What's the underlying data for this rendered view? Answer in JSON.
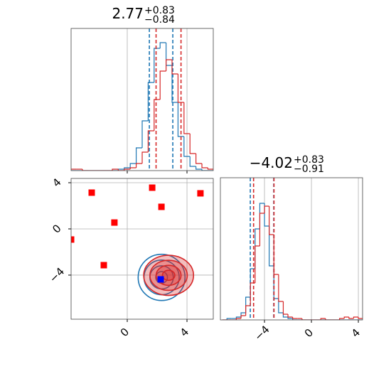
{
  "chart_data": [
    {
      "type": "histogram",
      "title": {
        "value": "2.77",
        "upper": "+0.83",
        "lower": "−0.84"
      },
      "bins": [
        -3.8,
        -3.4,
        -3.0,
        -2.6,
        -2.2,
        -1.8,
        -1.4,
        -1.0,
        -0.6,
        -0.2,
        0.2,
        0.6,
        1.0,
        1.4,
        1.8,
        2.2,
        2.6,
        3.0,
        3.4,
        3.8,
        4.2,
        4.6,
        5.0,
        5.4,
        5.8
      ],
      "series": [
        {
          "color": "#1f77b4",
          "values": [
            0,
            0,
            0,
            0,
            0,
            0,
            0,
            0,
            0.01,
            0.02,
            0.05,
            0.16,
            0.35,
            0.62,
            0.86,
            0.9,
            0.74,
            0.48,
            0.24,
            0.1,
            0.03,
            0.01,
            0,
            0
          ],
          "median": 2.3,
          "quantiles": [
            1.48,
            3.05
          ]
        },
        {
          "color": "#d62728",
          "values": [
            0.01,
            0.01,
            0,
            0,
            0,
            0,
            0,
            0.01,
            0,
            0.01,
            0.02,
            0.05,
            0.13,
            0.28,
            0.5,
            0.7,
            0.78,
            0.68,
            0.48,
            0.26,
            0.12,
            0.05,
            0.02,
            0.01
          ],
          "median": 2.77,
          "quantiles": [
            1.93,
            3.6
          ]
        }
      ],
      "xlim": [
        -3.76,
        5.76
      ],
      "xticks": [
        0,
        4
      ],
      "ylim": [
        0,
        1
      ],
      "grid": true
    },
    {
      "type": "scatter",
      "series": [
        {
          "color": "#ff0000",
          "x": [
            -2.38,
            1.67,
            2.29,
            4.9,
            -0.86,
            -3.76,
            -1.57
          ],
          "y": [
            3.14,
            3.57,
            1.91,
            3.08,
            0.55,
            -0.92,
            -3.14
          ]
        },
        {
          "color": "#0000ff",
          "x": [
            2.24
          ],
          "y": [
            -4.37
          ]
        }
      ],
      "xlim": [
        -3.76,
        5.76
      ],
      "xticks": [
        0,
        4
      ],
      "ylim": [
        -7.82,
        4.37
      ],
      "yticks": [
        4,
        0,
        {
          "value": -4,
          "label": "−4"
        }
      ],
      "grid": true
    },
    {
      "type": "histogram",
      "title": {
        "value": "−4.02",
        "upper": "+0.83",
        "lower": "−0.91"
      },
      "bins": [
        -7.6,
        -7.2,
        -6.8,
        -6.4,
        -6.0,
        -5.6,
        -5.2,
        -4.8,
        -4.4,
        -4.0,
        -3.6,
        -3.2,
        -2.8,
        -2.4,
        -2.0,
        -1.6,
        -1.2,
        -0.8,
        -0.4,
        0,
        0.4,
        0.8,
        1.2,
        1.6,
        2.0,
        2.4,
        2.8,
        3.2,
        3.6,
        4.0,
        4.4
      ],
      "series": [
        {
          "color": "#1f77b4",
          "values": [
            0,
            0.01,
            0.01,
            0.02,
            0.05,
            0.16,
            0.36,
            0.64,
            0.82,
            0.66,
            0.38,
            0.15,
            0.05,
            0.02,
            0.01,
            0,
            0,
            0,
            0,
            0,
            0,
            0,
            0,
            0,
            0,
            0,
            0,
            0,
            0,
            0
          ],
          "median": -4.2,
          "quantiles": [
            -5.21,
            -3.21
          ]
        },
        {
          "color": "#d62728",
          "values": [
            0,
            0,
            0,
            0.01,
            0.03,
            0.1,
            0.26,
            0.52,
            0.75,
            0.8,
            0.6,
            0.32,
            0.13,
            0.04,
            0.02,
            0.01,
            0.01,
            0,
            0,
            0,
            0,
            0.01,
            0,
            0,
            0,
            0.01,
            0.02,
            0.01,
            0.02,
            0.01
          ],
          "median": -4.02,
          "quantiles": [
            -4.93,
            -3.19
          ]
        }
      ],
      "xlim": [
        -7.76,
        4.36
      ],
      "xticks": [
        {
          "value": -4,
          "label": "−4"
        },
        0,
        4
      ],
      "ylim": [
        0,
        1
      ],
      "grid": true
    }
  ]
}
